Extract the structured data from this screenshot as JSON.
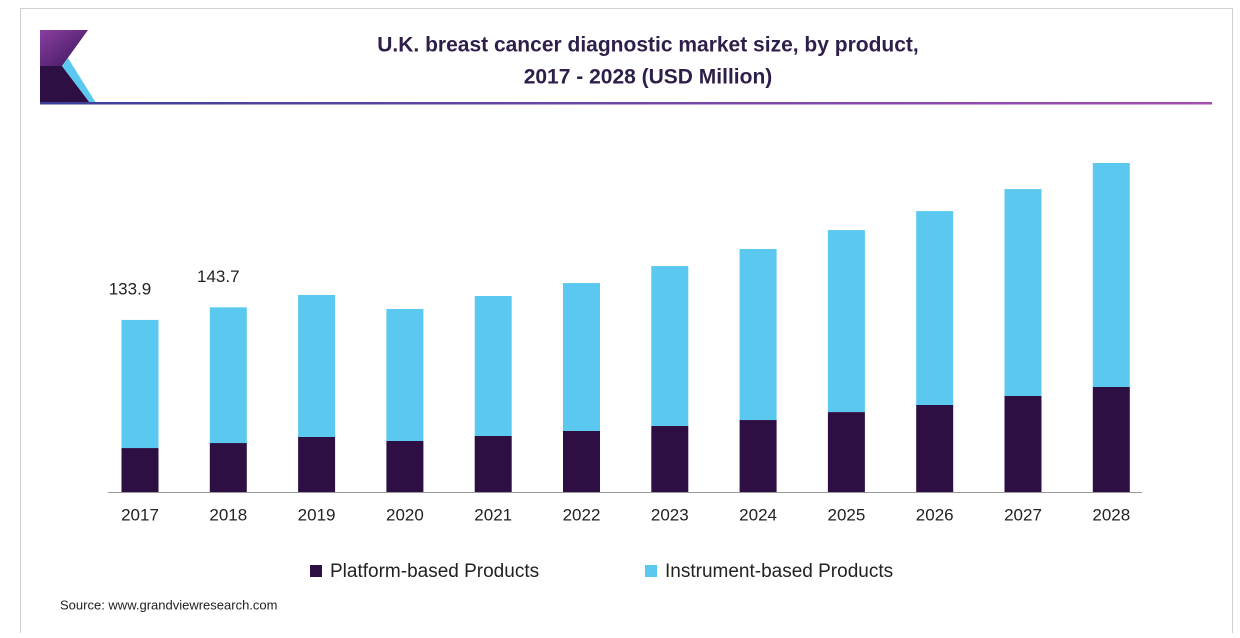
{
  "chart_data": {
    "type": "stacked_bar",
    "title": [
      "U.K. breast cancer diagnostic market size, by product,",
      "2017 - 2028 (USD Million)"
    ],
    "categories": [
      "2017",
      "2018",
      "2019",
      "2020",
      "2021",
      "2022",
      "2023",
      "2024",
      "2025",
      "2026",
      "2027",
      "2028"
    ],
    "series": [
      {
        "name": "Platform-based Products",
        "color": "#2e0f43",
        "values": [
          34.2,
          38.1,
          42.8,
          39.7,
          43.6,
          47.5,
          51.4,
          56.0,
          62.2,
          67.7,
          74.7,
          81.7
        ]
      },
      {
        "name": "Instrument-based Products",
        "color": "#5bc8f0",
        "values": [
          99.7,
          105.6,
          110.5,
          102.7,
          108.9,
          115.1,
          124.4,
          133.1,
          141.6,
          150.9,
          161.0,
          174.3
        ]
      }
    ],
    "annotations": [
      {
        "category": "2017",
        "text": "133.9"
      },
      {
        "category": "2018",
        "text": "143.7"
      }
    ],
    "source": "Source: www.grandviewresearch.com"
  }
}
